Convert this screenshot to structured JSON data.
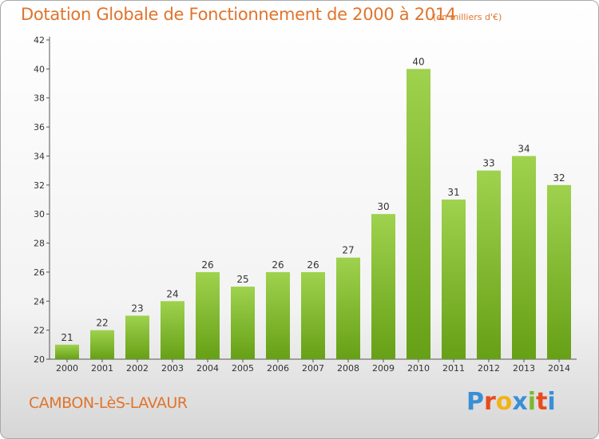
{
  "header": {
    "title": "Dotation Globale de Fonctionnement de 2000 à 2014",
    "unit": "(en milliers d'€)"
  },
  "footer": {
    "commune": "CAMBON-LèS-LAVAUR",
    "logo_letters": [
      "P",
      "r",
      "o",
      "x",
      "i",
      "t",
      "i"
    ],
    "logo_colors": [
      "#3a8fd6",
      "#e84c1e",
      "#f2b318",
      "#3a8fd6",
      "#7cb82f",
      "#e84c1e",
      "#3a8fd6"
    ]
  },
  "chart_data": {
    "type": "bar",
    "title": "Dotation Globale de Fonctionnement de 2000 à 2014",
    "subtitle": "(en milliers d'€)",
    "categories": [
      "2000",
      "2001",
      "2002",
      "2003",
      "2004",
      "2005",
      "2006",
      "2007",
      "2008",
      "2009",
      "2010",
      "2011",
      "2012",
      "2013",
      "2014"
    ],
    "values": [
      21,
      22,
      23,
      24,
      26,
      25,
      26,
      26,
      27,
      30,
      40,
      31,
      33,
      34,
      32
    ],
    "ylim": [
      20,
      42
    ],
    "yticks": [
      20,
      22,
      24,
      26,
      28,
      30,
      32,
      34,
      36,
      38,
      40,
      42
    ],
    "grid": false,
    "bar_color_top": "#9fd24e",
    "bar_color_bottom": "#66a016",
    "xlabel": "",
    "ylabel": ""
  }
}
